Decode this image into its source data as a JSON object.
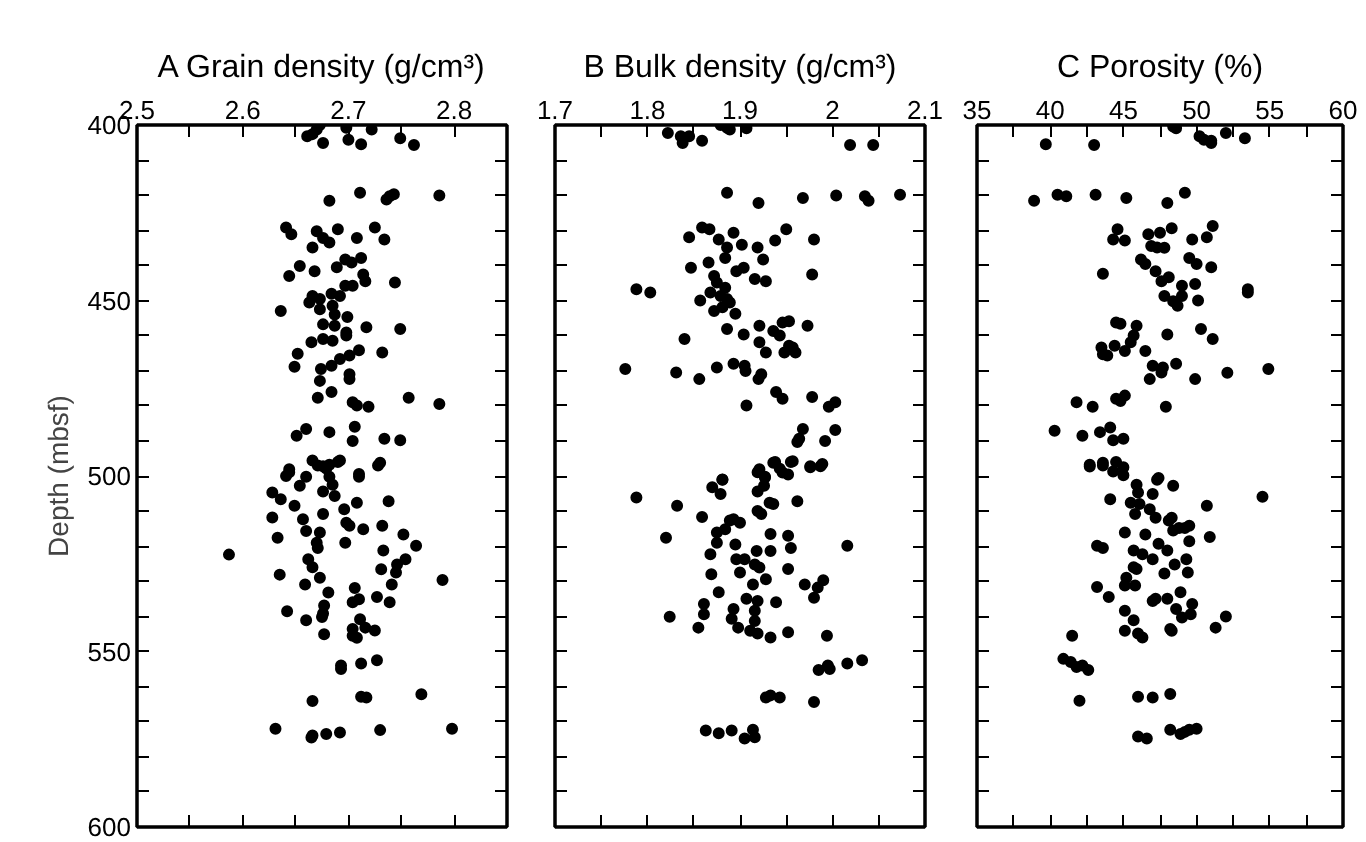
{
  "chart_data": [
    {
      "type": "scatter",
      "title": "A Grain density (g/cm³)",
      "ylabel": "Depth (mbsf)",
      "color": "#000000",
      "marker": "circle",
      "xlim": [
        2.5,
        2.85
      ],
      "ylim": [
        600,
        400
      ],
      "xticks": [
        2.5,
        {
          "value": 2.55,
          "label": null
        },
        2.6,
        {
          "value": 2.65,
          "label": null
        },
        2.7,
        {
          "value": 2.75,
          "label": null
        },
        2.8
      ],
      "yticks": [
        400,
        {
          "value": 410,
          "label": null
        },
        {
          "value": 420,
          "label": null
        },
        {
          "value": 430,
          "label": null
        },
        {
          "value": 440,
          "label": null
        },
        450,
        {
          "value": 460,
          "label": null
        },
        {
          "value": 470,
          "label": null
        },
        {
          "value": 480,
          "label": null
        },
        {
          "value": 490,
          "label": null
        },
        500,
        {
          "value": 510,
          "label": null
        },
        {
          "value": 520,
          "label": null
        },
        {
          "value": 530,
          "label": null
        },
        {
          "value": 540,
          "label": null
        },
        550,
        {
          "value": 560,
          "label": null
        },
        {
          "value": 570,
          "label": null
        },
        {
          "value": 580,
          "label": null
        },
        {
          "value": 590,
          "label": null
        },
        600
      ],
      "x": [
        2.673,
        2.67,
        2.661,
        2.666,
        2.676,
        2.698,
        2.7,
        2.712,
        2.722,
        2.749,
        2.762,
        2.682,
        2.711,
        2.736,
        2.739,
        2.743,
        2.786,
        2.641,
        2.646,
        2.67,
        2.676,
        2.682,
        2.69,
        2.708,
        2.725,
        2.734,
        2.666,
        2.654,
        2.668,
        2.689,
        2.697,
        2.703,
        2.712,
        2.714,
        2.644,
        2.697,
        2.704,
        2.716,
        2.744,
        2.636,
        2.663,
        2.666,
        2.673,
        2.684,
        2.692,
        2.685,
        2.673,
        2.687,
        2.699,
        2.676,
        2.687,
        2.698,
        2.717,
        2.749,
        2.665,
        2.676,
        2.685,
        2.698,
        2.652,
        2.649,
        2.674,
        2.684,
        2.692,
        2.701,
        2.71,
        2.732,
        2.701,
        2.701,
        2.673,
        2.684,
        2.671,
        2.704,
        2.708,
        2.719,
        2.757,
        2.786,
        2.66,
        2.651,
        2.682,
        2.706,
        2.704,
        2.734,
        2.749,
        2.666,
        2.671,
        2.679,
        2.69,
        2.728,
        2.644,
        2.66,
        2.682,
        2.71,
        2.676,
        2.682,
        2.692,
        2.73,
        2.644,
        2.641,
        2.654,
        2.676,
        2.685,
        2.687,
        2.71,
        2.628,
        2.636,
        2.649,
        2.628,
        2.657,
        2.676,
        2.696,
        2.708,
        2.738,
        2.698,
        2.701,
        2.66,
        2.673,
        2.714,
        2.732,
        2.752,
        2.764,
        2.633,
        2.67,
        2.671,
        2.697,
        2.733,
        2.754,
        2.746,
        2.745,
        2.731,
        2.587,
        2.662,
        2.666,
        2.673,
        2.635,
        2.659,
        2.681,
        2.706,
        2.71,
        2.704,
        2.727,
        2.741,
        2.739,
        2.789,
        2.642,
        2.66,
        2.676,
        2.677,
        2.675,
        2.677,
        2.711,
        2.704,
        2.704,
        2.716,
        2.725,
        2.708,
        2.693,
        2.693,
        2.712,
        2.727,
        2.666,
        2.712,
        2.717,
        2.769,
        2.631,
        2.665,
        2.666,
        2.679,
        2.692,
        2.73,
        2.798
      ],
      "values": [
        400.0,
        401.3,
        403.2,
        402.6,
        405.1,
        400.8,
        404.2,
        405.5,
        401.3,
        403.8,
        405.7,
        421.6,
        419.3,
        421.2,
        420.3,
        419.7,
        420.1,
        429.2,
        431.1,
        430.3,
        432.2,
        433.5,
        429.7,
        432.2,
        429.2,
        432.6,
        434.9,
        440.2,
        441.7,
        440.5,
        438.3,
        439.2,
        437.9,
        442.6,
        443.0,
        445.8,
        445.8,
        444.5,
        444.9,
        453.0,
        450.6,
        448.7,
        449.6,
        448.1,
        448.7,
        451.5,
        452.5,
        454.0,
        454.7,
        456.8,
        457.2,
        459.1,
        457.6,
        458.1,
        461.9,
        461.0,
        461.5,
        460.0,
        465.2,
        468.9,
        469.5,
        468.6,
        466.7,
        465.7,
        464.2,
        464.8,
        471.0,
        472.4,
        472.9,
        476.1,
        477.7,
        479.0,
        479.9,
        480.3,
        477.7,
        479.5,
        486.6,
        488.5,
        487.5,
        486.0,
        490.0,
        489.4,
        489.8,
        495.6,
        497.0,
        497.9,
        496.0,
        497.0,
        498.9,
        500.2,
        500.2,
        500.2,
        497.2,
        496.8,
        495.6,
        496.2,
        498.1,
        500.0,
        502.8,
        504.4,
        502.5,
        505.7,
        499.4,
        504.7,
        506.6,
        508.5,
        511.8,
        512.3,
        510.8,
        509.5,
        507.6,
        507.2,
        513.3,
        514.2,
        515.7,
        516.1,
        515.2,
        514.2,
        516.7,
        519.9,
        517.6,
        519.0,
        520.5,
        519.0,
        521.2,
        523.7,
        525.2,
        527.5,
        526.6,
        522.4,
        523.7,
        526.0,
        529.0,
        528.1,
        530.9,
        533.2,
        531.9,
        535.1,
        536.0,
        534.5,
        530.9,
        536.0,
        529.6,
        538.5,
        541.1,
        539.2,
        536.9,
        540.2,
        545.1,
        540.8,
        543.6,
        545.5,
        543.2,
        544.0,
        546.1,
        554.0,
        555.0,
        553.4,
        552.5,
        564.1,
        562.9,
        563.1,
        562.2,
        572.0,
        574.5,
        573.9,
        573.5,
        573.1,
        572.4,
        572.0
      ]
    },
    {
      "type": "scatter",
      "title": "B Bulk density (g/cm³)",
      "color": "#000000",
      "marker": "circle",
      "tick_labels": "x",
      "xlim": [
        1.7,
        2.1
      ],
      "ylim": [
        600,
        400
      ],
      "xticks": [
        1.7,
        {
          "value": 1.75,
          "label": null
        },
        1.8,
        {
          "value": 1.85,
          "label": null
        },
        1.9,
        {
          "value": 1.95,
          "label": null
        },
        2,
        {
          "value": 2.05,
          "label": null
        },
        2.1
      ],
      "yticks": [
        400,
        {
          "value": 410,
          "label": null
        },
        {
          "value": 420,
          "label": null
        },
        {
          "value": 430,
          "label": null
        },
        {
          "value": 440,
          "label": null
        },
        450,
        {
          "value": 460,
          "label": null
        },
        {
          "value": 470,
          "label": null
        },
        {
          "value": 480,
          "label": null
        },
        {
          "value": 490,
          "label": null
        },
        500,
        {
          "value": 510,
          "label": null
        },
        {
          "value": 520,
          "label": null
        },
        {
          "value": 530,
          "label": null
        },
        {
          "value": 540,
          "label": null
        },
        550,
        {
          "value": 560,
          "label": null
        },
        {
          "value": 570,
          "label": null
        },
        {
          "value": 580,
          "label": null
        },
        {
          "value": 590,
          "label": null
        },
        600
      ],
      "x": [
        1.822,
        1.836,
        1.838,
        1.845,
        1.859,
        1.879,
        1.886,
        1.889,
        1.907,
        2.019,
        2.044,
        1.886,
        1.92,
        1.968,
        2.004,
        2.035,
        2.039,
        2.073,
        1.845,
        1.859,
        1.867,
        1.893,
        1.877,
        1.886,
        1.902,
        1.919,
        1.938,
        1.95,
        1.98,
        1.847,
        1.866,
        1.872,
        1.884,
        1.896,
        1.904,
        1.916,
        1.928,
        1.925,
        1.978,
        1.788,
        1.803,
        1.857,
        1.868,
        1.875,
        1.879,
        1.884,
        1.886,
        1.889,
        1.872,
        1.881,
        1.895,
        1.886,
        1.904,
        1.921,
        1.936,
        1.943,
        1.946,
        1.953,
        1.973,
        1.84,
        1.921,
        1.928,
        1.948,
        1.957,
        1.96,
        1.953,
        1.776,
        1.831,
        1.856,
        1.875,
        1.893,
        1.905,
        1.906,
        1.92,
        1.923,
        1.939,
        1.946,
        1.907,
        1.978,
        1.996,
        2.003,
        1.968,
        1.964,
        1.962,
        1.992,
        2.003,
        1.881,
        1.919,
        1.927,
        1.938,
        1.943,
        1.955,
        1.976,
        1.987,
        1.921,
        1.936,
        1.957,
        1.976,
        1.989,
        1.927,
        1.926,
        1.946,
        1.952,
        1.87,
        1.881,
        1.879,
        1.919,
        1.788,
        1.832,
        1.932,
        1.936,
        1.962,
        1.859,
        1.884,
        1.889,
        1.893,
        1.9,
        1.919,
        1.923,
        1.82,
        1.875,
        1.875,
        1.895,
        1.933,
        1.952,
        1.955,
        2.016,
        1.868,
        1.896,
        1.905,
        1.918,
        1.933,
        1.916,
        1.921,
        1.952,
        1.869,
        1.9,
        1.928,
        1.914,
        1.97,
        1.984,
        1.99,
        1.98,
        1.877,
        1.907,
        1.919,
        1.939,
        1.861,
        1.861,
        1.891,
        1.893,
        1.916,
        1.916,
        1.824,
        1.855,
        1.898,
        1.911,
        1.919,
        1.933,
        1.952,
        1.994,
        1.985,
        1.995,
        1.997,
        2.016,
        2.032,
        1.928,
        1.933,
        1.943,
        1.98,
        1.863,
        1.877,
        1.891,
        1.905,
        1.914,
        1.916
      ],
      "values": [
        402.3,
        403.2,
        405.1,
        403.2,
        404.5,
        400.0,
        400.8,
        401.3,
        400.9,
        405.7,
        405.7,
        419.3,
        422.2,
        420.8,
        420.1,
        420.3,
        421.6,
        419.9,
        432.0,
        429.2,
        429.7,
        430.7,
        432.6,
        434.9,
        434.1,
        434.9,
        432.9,
        429.7,
        432.6,
        440.7,
        439.2,
        443.0,
        437.9,
        441.7,
        440.7,
        443.9,
        444.5,
        438.3,
        442.6,
        446.8,
        447.7,
        450.0,
        447.7,
        444.9,
        448.7,
        446.4,
        449.6,
        450.6,
        453.0,
        451.9,
        453.8,
        458.1,
        459.7,
        457.2,
        458.7,
        460.0,
        456.3,
        455.9,
        457.2,
        461.0,
        461.9,
        464.8,
        464.8,
        463.4,
        464.8,
        462.9,
        469.5,
        470.5,
        472.4,
        469.1,
        468.0,
        468.6,
        470.1,
        472.4,
        471.0,
        476.1,
        478.0,
        479.9,
        477.5,
        480.3,
        479.0,
        486.6,
        489.4,
        490.3,
        490.0,
        486.9,
        501.1,
        498.9,
        500.2,
        496.0,
        497.9,
        496.0,
        497.5,
        497.2,
        498.1,
        496.2,
        495.8,
        497.2,
        496.6,
        500.4,
        502.8,
        499.0,
        499.6,
        503.2,
        501.0,
        505.1,
        504.4,
        506.1,
        508.5,
        507.6,
        508.0,
        507.2,
        511.7,
        515.2,
        512.7,
        512.3,
        513.3,
        510.0,
        510.8,
        517.6,
        516.1,
        519.0,
        519.5,
        516.5,
        517.0,
        520.5,
        519.9,
        522.3,
        523.7,
        523.7,
        521.4,
        521.4,
        525.2,
        526.1,
        526.5,
        528.0,
        527.5,
        529.4,
        530.9,
        530.9,
        531.8,
        529.7,
        534.7,
        533.1,
        535.0,
        535.6,
        536.0,
        536.5,
        539.4,
        540.7,
        537.9,
        538.4,
        541.3,
        540.1,
        543.2,
        543.2,
        544.1,
        544.9,
        546.0,
        544.5,
        545.5,
        555.3,
        554.0,
        555.0,
        553.4,
        552.5,
        563.1,
        562.5,
        563.1,
        564.4,
        572.5,
        573.3,
        572.5,
        574.8,
        572.3,
        574.4
      ]
    },
    {
      "type": "scatter",
      "title": "C Porosity (%)",
      "color": "#000000",
      "marker": "circle",
      "tick_labels": "x",
      "xlim": [
        35,
        60
      ],
      "ylim": [
        600,
        400
      ],
      "xticks": [
        35,
        {
          "value": 37.5,
          "label": null
        },
        40,
        {
          "value": 42.5,
          "label": null
        },
        45,
        {
          "value": 47.5,
          "label": null
        },
        50,
        {
          "value": 52.5,
          "label": null
        },
        55,
        {
          "value": 57.5,
          "label": null
        },
        60
      ],
      "yticks": [
        400,
        {
          "value": 410,
          "label": null
        },
        {
          "value": 420,
          "label": null
        },
        {
          "value": 430,
          "label": null
        },
        {
          "value": 440,
          "label": null
        },
        450,
        {
          "value": 460,
          "label": null
        },
        {
          "value": 470,
          "label": null
        },
        {
          "value": 480,
          "label": null
        },
        {
          "value": 490,
          "label": null
        },
        500,
        {
          "value": 510,
          "label": null
        },
        {
          "value": 520,
          "label": null
        },
        {
          "value": 530,
          "label": null
        },
        {
          "value": 540,
          "label": null
        },
        550,
        {
          "value": 560,
          "label": null
        },
        {
          "value": 570,
          "label": null
        },
        {
          "value": 580,
          "label": null
        },
        {
          "value": 590,
          "label": null
        },
        600
      ],
      "x": [
        48.4,
        48.6,
        50.2,
        50.5,
        51.0,
        51.0,
        52.0,
        53.3,
        39.7,
        43.0,
        38.9,
        40.5,
        41.1,
        43.1,
        45.2,
        48.0,
        49.2,
        44.6,
        44.3,
        45.1,
        46.7,
        47.5,
        46.9,
        47.3,
        47.8,
        48.3,
        49.7,
        50.7,
        51.1,
        46.2,
        46.5,
        43.6,
        47.2,
        47.6,
        48.1,
        49.5,
        50.0,
        51.0,
        49.0,
        49.9,
        47.8,
        48.4,
        48.7,
        49.0,
        50.1,
        53.5,
        53.5,
        44.5,
        44.8,
        45.9,
        45.7,
        45.5,
        43.5,
        43.6,
        44.4,
        43.9,
        45.1,
        46.5,
        48.0,
        50.3,
        51.1,
        47.0,
        47.7,
        48.6,
        46.8,
        47.6,
        49.9,
        52.1,
        54.9,
        41.8,
        42.9,
        44.5,
        44.8,
        45.1,
        47.9,
        40.3,
        42.2,
        43.4,
        44.1,
        44.3,
        45.0,
        42.7,
        43.6,
        44.5,
        45.0,
        47.3,
        42.7,
        43.6,
        44.3,
        45.0,
        47.4,
        45.9,
        46.0,
        47.0,
        48.4,
        44.1,
        45.5,
        46.1,
        45.8,
        46.8,
        47.2,
        48.1,
        48.3,
        50.7,
        54.5,
        45.1,
        46.5,
        47.4,
        48.0,
        48.4,
        48.8,
        49.2,
        49.5,
        49.5,
        50.9,
        43.2,
        43.6,
        45.7,
        46.3,
        47.0,
        45.7,
        45.9,
        47.8,
        49.3,
        48.5,
        49.4,
        43.2,
        44.0,
        45.2,
        45.1,
        45.8,
        47.0,
        47.2,
        48.0,
        48.9,
        49.7,
        48.6,
        49.0,
        49.6,
        45.1,
        45.7,
        45.1,
        46.0,
        46.3,
        48.2,
        48.3,
        51.3,
        52.0,
        41.5,
        40.9,
        41.4,
        41.8,
        42.2,
        42.6,
        42.0,
        46.0,
        47.0,
        48.2,
        46.0,
        46.6,
        48.2,
        48.9,
        49.2,
        49.5,
        50.0
      ],
      "values": [
        400.4,
        400.9,
        403.2,
        404.2,
        404.5,
        405.1,
        402.3,
        403.8,
        405.5,
        405.7,
        421.6,
        419.9,
        420.3,
        419.9,
        420.8,
        422.2,
        419.3,
        429.7,
        432.6,
        432.9,
        431.1,
        430.7,
        434.5,
        434.9,
        435.0,
        429.4,
        432.6,
        432.0,
        428.8,
        438.3,
        439.6,
        442.4,
        441.7,
        444.5,
        443.4,
        437.9,
        439.6,
        440.5,
        445.8,
        445.3,
        448.7,
        450.2,
        451.5,
        448.7,
        450.0,
        446.8,
        447.7,
        456.3,
        456.6,
        457.2,
        460.0,
        461.9,
        463.4,
        465.3,
        462.9,
        465.7,
        464.4,
        464.4,
        459.7,
        458.1,
        461.0,
        468.6,
        469.1,
        468.0,
        472.4,
        470.5,
        472.4,
        470.6,
        469.5,
        479.0,
        480.3,
        478.0,
        478.6,
        477.1,
        480.3,
        487.1,
        488.5,
        487.5,
        486.2,
        489.8,
        489.4,
        497.3,
        497.0,
        496.0,
        499.8,
        501.1,
        496.8,
        496.2,
        498.7,
        497.5,
        500.6,
        502.5,
        504.7,
        505.1,
        502.8,
        506.6,
        507.6,
        508.0,
        510.8,
        509.5,
        511.9,
        512.7,
        511.9,
        508.5,
        505.9,
        516.1,
        516.7,
        519.3,
        521.2,
        515.5,
        514.8,
        514.8,
        514.2,
        518.6,
        517.4,
        519.9,
        520.5,
        521.2,
        522.3,
        523.7,
        526.0,
        526.5,
        527.8,
        523.7,
        525.2,
        527.5,
        531.6,
        534.5,
        529.0,
        531.2,
        531.2,
        535.6,
        535.0,
        535.0,
        533.1,
        536.5,
        537.9,
        540.3,
        539.4,
        538.4,
        541.1,
        544.1,
        544.9,
        546.0,
        543.6,
        544.1,
        543.2,
        540.0,
        545.5,
        552.1,
        553.0,
        554.4,
        554.0,
        555.3,
        564.0,
        562.9,
        563.1,
        562.1,
        574.2,
        574.8,
        572.3,
        573.5,
        572.9,
        572.3,
        572.0
      ]
    }
  ]
}
